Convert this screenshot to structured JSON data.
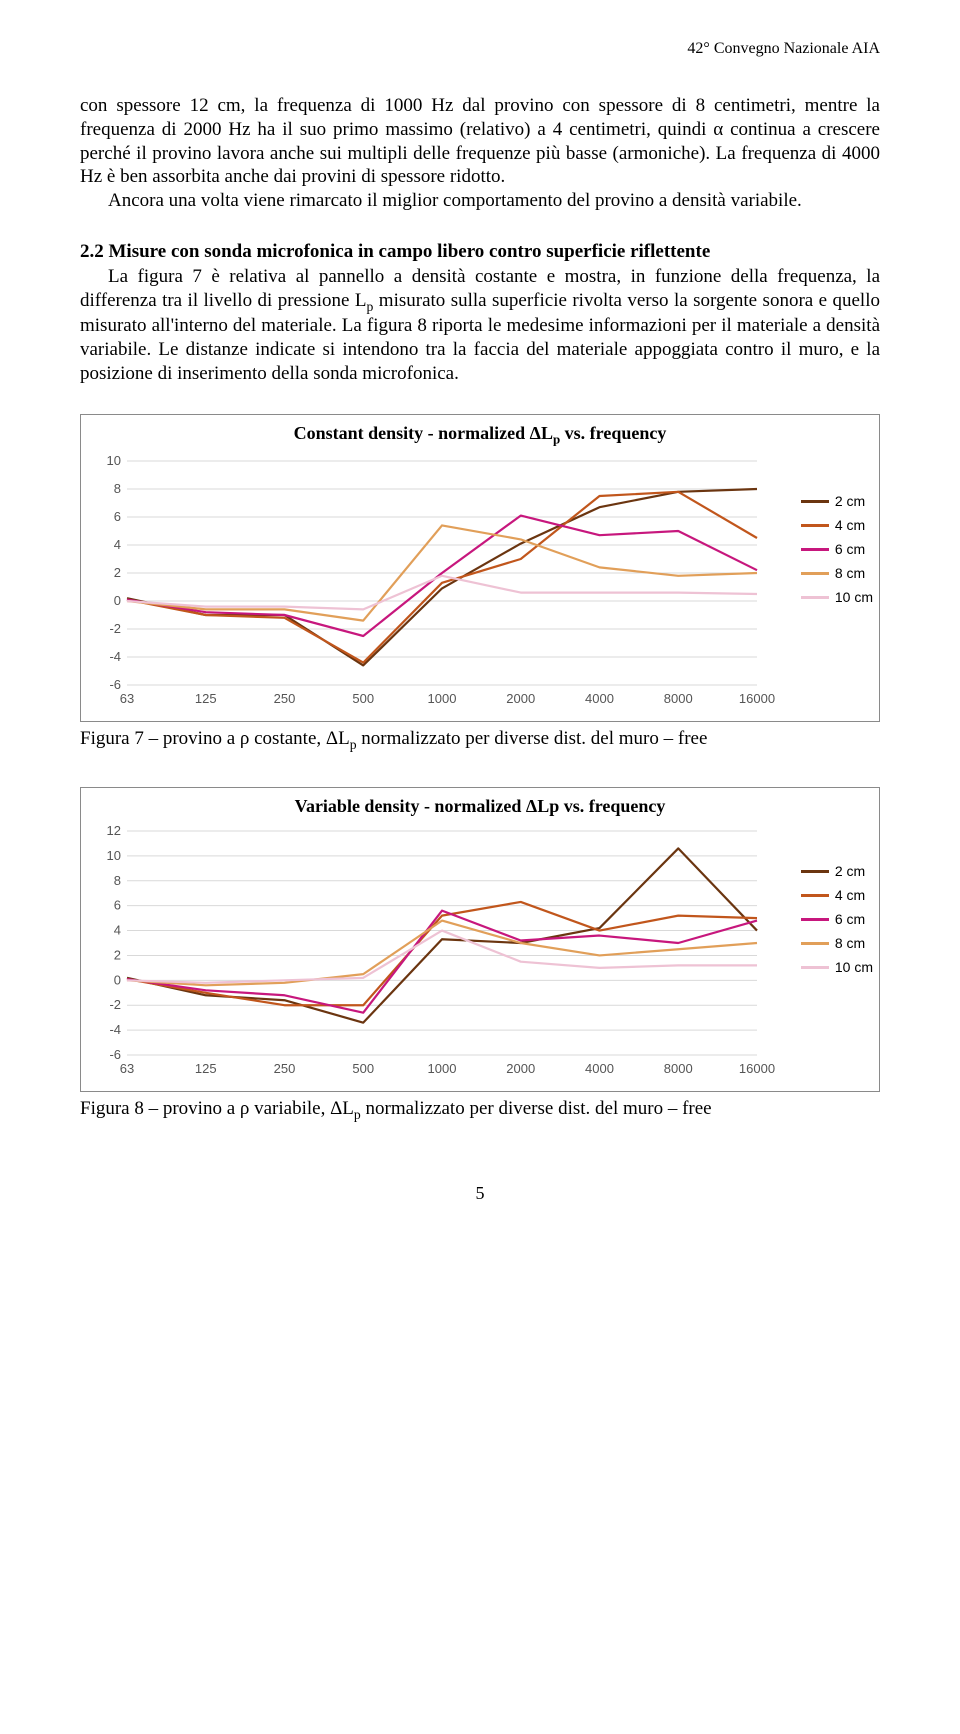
{
  "running_head": "42° Convegno Nazionale AIA",
  "para1_a": "con spessore 12 cm, la frequenza di 1000 Hz dal provino con spessore di 8 centimetri, mentre la frequenza di 2000 Hz ha il suo primo massimo (relativo) a 4 centimetri, quindi α continua a crescere perché il provino lavora anche sui multipli delle frequenze più basse (armoniche). La frequenza di 4000 Hz è ben assorbita anche dai provini di spessore ridotto.",
  "para1_b": "Ancora una volta viene rimarcato il miglior comportamento del provino a densità variabile.",
  "sec_heading": "2.2 Misure con sonda microfonica in campo libero contro superficie riflettente",
  "para2_a": "La figura 7 è relativa al pannello a densità costante e mostra, in funzione della frequenza, la differenza tra il livello di pressione L",
  "para2_a_sub": "p",
  "para2_a_tail": " misurato sulla superficie rivolta verso la sorgente sonora e quello misurato all'interno del materiale. La figura 8 riporta le medesime informazioni per il materiale a densità variabile. Le distanze indicate si intendono tra la faccia del materiale appoggiata contro il muro, e la posizione di inserimento della sonda microfonica.",
  "caption7_a": "Figura 7 – provino a ρ costante, ΔL",
  "caption7_sub": "p",
  "caption7_b": " normalizzato per diverse dist. del muro – free",
  "caption8_a": "Figura 8 – provino a ρ variabile, ΔL",
  "caption8_sub": "p",
  "caption8_b": " normalizzato per diverse dist. del muro – free",
  "page_number": "5",
  "chart7": {
    "type": "line",
    "title_a": "Constant density - normalized ΔL",
    "title_sub": "p",
    "title_b": " vs. frequency",
    "x_categories": [
      "63",
      "125",
      "250",
      "500",
      "1000",
      "2000",
      "4000",
      "8000",
      "16000"
    ],
    "ylim": [
      -6,
      10
    ],
    "ytick_step": 2,
    "grid_color": "#d9d9d9",
    "border_color": "#8a8a8a",
    "tick_color": "#666666",
    "line_width": 2.2,
    "series": [
      {
        "label": "2 cm",
        "color": "#6b3510",
        "values": [
          0.2,
          -1.0,
          -1.0,
          -4.6,
          0.9,
          4.1,
          6.7,
          7.8,
          8.0
        ]
      },
      {
        "label": "4 cm",
        "color": "#c1561c",
        "values": [
          0.1,
          -1.0,
          -1.2,
          -4.4,
          1.3,
          3.0,
          7.5,
          7.8,
          4.5
        ]
      },
      {
        "label": "6 cm",
        "color": "#c7177d",
        "values": [
          0.1,
          -0.8,
          -1.0,
          -2.5,
          2.0,
          6.1,
          4.7,
          5.0,
          2.2
        ]
      },
      {
        "label": "8 cm",
        "color": "#e19f59",
        "values": [
          0.0,
          -0.6,
          -0.6,
          -1.4,
          5.4,
          4.4,
          2.4,
          1.8,
          2.0
        ]
      },
      {
        "label": "10 cm",
        "color": "#eec2d4",
        "values": [
          0.0,
          -0.4,
          -0.4,
          -0.6,
          1.8,
          0.6,
          0.6,
          0.6,
          0.5
        ]
      }
    ],
    "legend_labels": [
      "2 cm",
      "4 cm",
      "6 cm",
      "8 cm",
      "10 cm"
    ],
    "legend_colors": [
      "#6b3510",
      "#c1561c",
      "#c7177d",
      "#e19f59",
      "#eec2d4"
    ],
    "fontsize_axis": 13
  },
  "chart8": {
    "type": "line",
    "title_a": "Variable  density - normalized ΔLp vs. frequency",
    "x_categories": [
      "63",
      "125",
      "250",
      "500",
      "1000",
      "2000",
      "4000",
      "8000",
      "16000"
    ],
    "ylim": [
      -6,
      12
    ],
    "ytick_step": 2,
    "grid_color": "#d9d9d9",
    "border_color": "#8a8a8a",
    "tick_color": "#666666",
    "line_width": 2.2,
    "series": [
      {
        "label": "2 cm",
        "color": "#6b3510",
        "values": [
          0.2,
          -1.2,
          -1.6,
          -3.4,
          3.3,
          3.0,
          4.2,
          10.6,
          4.0
        ]
      },
      {
        "label": "4 cm",
        "color": "#c1561c",
        "values": [
          0.1,
          -1.0,
          -2.0,
          -2.0,
          5.2,
          6.3,
          4.0,
          5.2,
          5.0
        ]
      },
      {
        "label": "6 cm",
        "color": "#c7177d",
        "values": [
          0.1,
          -0.8,
          -1.2,
          -2.6,
          5.6,
          3.2,
          3.6,
          3.0,
          4.8
        ]
      },
      {
        "label": "8 cm",
        "color": "#e19f59",
        "values": [
          0.0,
          -0.4,
          -0.2,
          0.5,
          4.8,
          3.0,
          2.0,
          2.5,
          3.0
        ]
      },
      {
        "label": "10 cm",
        "color": "#eec2d4",
        "values": [
          0.0,
          -0.2,
          0.0,
          0.2,
          4.0,
          1.5,
          1.0,
          1.2,
          1.2
        ]
      }
    ],
    "legend_labels": [
      "2 cm",
      "4 cm",
      "6 cm",
      "8 cm",
      "10 cm"
    ],
    "legend_colors": [
      "#6b3510",
      "#c1561c",
      "#c7177d",
      "#e19f59",
      "#eec2d4"
    ],
    "fontsize_axis": 13
  }
}
